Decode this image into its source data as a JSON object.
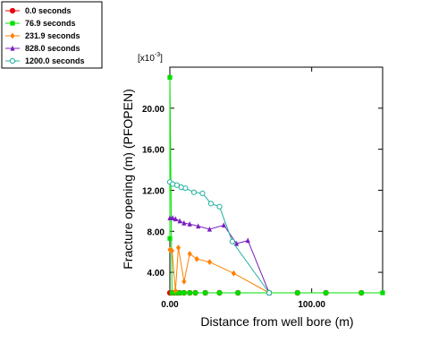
{
  "chart_data": {
    "type": "line",
    "title": "",
    "xlabel": "Distance from well bore (m)",
    "ylabel": "Fracture opening (m) (PFOPEN)",
    "y_multiplier_label": "[x10",
    "y_multiplier_exponent": "-3",
    "y_multiplier_suffix": "]",
    "xlim": [
      0,
      150
    ],
    "ylim": [
      2,
      24
    ],
    "x_ticks": [
      0,
      100
    ],
    "x_tick_labels": [
      "0.00",
      "100.00"
    ],
    "y_ticks": [
      4,
      8,
      12,
      16,
      20
    ],
    "y_tick_labels": [
      "4.00",
      "8.00",
      "12.00",
      "16.00",
      "20.00"
    ],
    "grid": false,
    "legend_position": "top-left",
    "series": [
      {
        "name": "0.0 seconds",
        "color": "#e8000b",
        "marker": "circle-filled",
        "x": [
          0,
          1,
          3,
          5,
          7,
          10,
          14,
          18,
          25,
          35,
          48,
          70,
          90,
          110,
          135
        ],
        "y": [
          2,
          2,
          2,
          2,
          2,
          2,
          2,
          2,
          2,
          2,
          2,
          2,
          2,
          2,
          2
        ]
      },
      {
        "name": "76.9 seconds",
        "color": "#00e000",
        "marker": "square-filled",
        "x": [
          0,
          0,
          1.5,
          3,
          5,
          7,
          10,
          14,
          18,
          25,
          35,
          48,
          70,
          90,
          110,
          135,
          150
        ],
        "y": [
          7.3,
          23,
          2,
          2,
          2,
          2,
          2,
          2,
          2,
          2,
          2,
          2,
          2,
          2,
          2,
          2,
          2
        ]
      },
      {
        "name": "231.9 seconds",
        "color": "#ff8000",
        "marker": "diamond-filled",
        "x": [
          0,
          1.5,
          4,
          6,
          10,
          14,
          19,
          28,
          45,
          70
        ],
        "y": [
          6.2,
          6.1,
          2.2,
          6.4,
          3.1,
          5.8,
          5.3,
          5.0,
          3.9,
          2.0
        ]
      },
      {
        "name": "828.0 seconds",
        "color": "#7a1fbf",
        "marker": "triangle-filled",
        "x": [
          0,
          2,
          4,
          7,
          10,
          14,
          20,
          28,
          38,
          47,
          55,
          70
        ],
        "y": [
          9.3,
          9.3,
          9.2,
          9.0,
          8.8,
          8.7,
          8.5,
          8.2,
          8.6,
          6.8,
          7.1,
          2.0
        ]
      },
      {
        "name": "1200.0 seconds",
        "color": "#20b0a0",
        "marker": "circle-open",
        "x": [
          0,
          2,
          5,
          8,
          11,
          17,
          23,
          29,
          35,
          44,
          70
        ],
        "y": [
          12.8,
          12.6,
          12.5,
          12.3,
          12.2,
          11.8,
          11.7,
          10.7,
          10.4,
          7.0,
          2.0
        ]
      }
    ]
  }
}
